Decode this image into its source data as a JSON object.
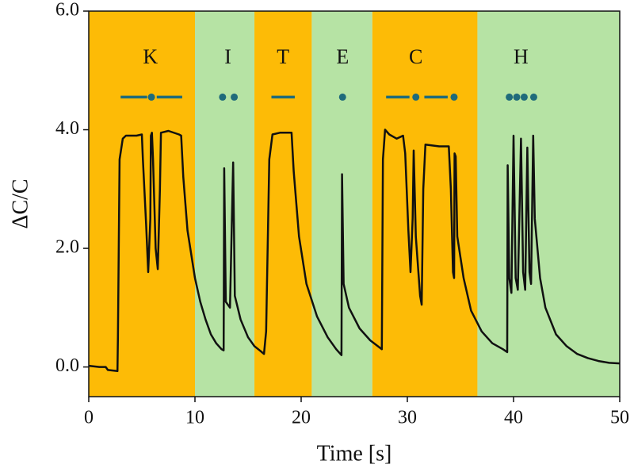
{
  "chart_data": {
    "type": "line",
    "xlabel": "Time [s]",
    "ylabel": "ΔC/C",
    "xlim": [
      0,
      50
    ],
    "ylim": [
      -0.5,
      6.0
    ],
    "xticks": [
      0,
      10,
      20,
      30,
      40,
      50
    ],
    "yticks": [
      {
        "value": 0,
        "label": "0.0"
      },
      {
        "value": 2,
        "label": "2.0"
      },
      {
        "value": 4,
        "label": "4.0"
      },
      {
        "value": 6,
        "label": "6.0"
      }
    ],
    "regions": [
      {
        "xlim": [
          0,
          10
        ],
        "color": "#fdbb06"
      },
      {
        "xlim": [
          10,
          15.6
        ],
        "color": "#b6e3a4"
      },
      {
        "xlim": [
          15.6,
          21
        ],
        "color": "#fdbb06"
      },
      {
        "xlim": [
          21,
          26.7
        ],
        "color": "#b6e3a4"
      },
      {
        "xlim": [
          26.7,
          36.6
        ],
        "color": "#fdbb06"
      },
      {
        "xlim": [
          36.6,
          50
        ],
        "color": "#b6e3a4"
      }
    ],
    "annotations": [
      {
        "text": "K",
        "x": 5.8,
        "y": 5.2
      },
      {
        "text": "I",
        "x": 13.1,
        "y": 5.2
      },
      {
        "text": "T",
        "x": 18.3,
        "y": 5.2
      },
      {
        "text": "E",
        "x": 23.9,
        "y": 5.2
      },
      {
        "text": "C",
        "x": 30.8,
        "y": 5.2
      },
      {
        "text": "H",
        "x": 40.7,
        "y": 5.2
      }
    ],
    "symbol_color": "#1f6b7b",
    "symbols": [
      {
        "kind": "dash",
        "x": [
          3.0,
          5.5
        ],
        "y": 4.55
      },
      {
        "kind": "dot",
        "x": 5.9,
        "y": 4.55
      },
      {
        "kind": "dash",
        "x": [
          6.4,
          8.8
        ],
        "y": 4.55
      },
      {
        "kind": "dot",
        "x": 12.6,
        "y": 4.55
      },
      {
        "kind": "dot",
        "x": 13.7,
        "y": 4.55
      },
      {
        "kind": "dash",
        "x": [
          17.2,
          19.4
        ],
        "y": 4.55
      },
      {
        "kind": "dot",
        "x": 23.9,
        "y": 4.55
      },
      {
        "kind": "dash",
        "x": [
          28.0,
          30.2
        ],
        "y": 4.55
      },
      {
        "kind": "dot",
        "x": 30.8,
        "y": 4.55
      },
      {
        "kind": "dash",
        "x": [
          31.6,
          33.8
        ],
        "y": 4.55
      },
      {
        "kind": "dot",
        "x": 34.4,
        "y": 4.55
      },
      {
        "kind": "dot",
        "x": 39.6,
        "y": 4.55
      },
      {
        "kind": "dot",
        "x": 40.3,
        "y": 4.55
      },
      {
        "kind": "dot",
        "x": 41.0,
        "y": 4.55
      },
      {
        "kind": "dot",
        "x": 41.9,
        "y": 4.55
      }
    ],
    "series": [
      {
        "color": "#111111",
        "x": [
          0,
          1,
          1.6,
          1.8,
          2.7,
          2.75,
          2.9,
          3.2,
          3.5,
          4.5,
          5.0,
          5.1,
          5.4,
          5.6,
          5.8,
          5.85,
          5.95,
          6.05,
          6.3,
          6.5,
          6.7,
          6.8,
          7.5,
          8.5,
          8.7,
          8.9,
          9.3,
          10,
          10.5,
          11,
          11.5,
          12,
          12.5,
          12.7,
          12.75,
          12.9,
          13.3,
          13.6,
          13.75,
          14.3,
          15,
          15.6,
          16.1,
          16.5,
          16.7,
          17,
          17.3,
          18,
          19.1,
          19.3,
          19.8,
          20.5,
          21.5,
          22.5,
          23.3,
          23.8,
          23.85,
          24,
          24.5,
          25.5,
          26.5,
          27.6,
          27.7,
          27.9,
          28.3,
          29,
          29.6,
          29.8,
          30.1,
          30.3,
          30.5,
          30.6,
          30.8,
          31.2,
          31.35,
          31.5,
          31.7,
          33,
          33.9,
          34.1,
          34.3,
          34.4,
          34.45,
          34.55,
          34.7,
          35.3,
          36,
          37,
          38,
          39,
          39.4,
          39.45,
          39.6,
          39.8,
          40.0,
          40.2,
          40.4,
          40.7,
          40.9,
          41.1,
          41.3,
          41.5,
          41.65,
          41.85,
          42.0,
          42.5,
          43,
          44,
          45,
          46,
          47,
          48,
          49,
          50
        ],
        "values": [
          0.02,
          0.0,
          0.0,
          -0.05,
          -0.07,
          0.5,
          3.5,
          3.85,
          3.9,
          3.9,
          3.92,
          3.5,
          2.4,
          1.6,
          2.5,
          3.9,
          3.95,
          3.5,
          2.0,
          1.65,
          3.0,
          3.95,
          3.98,
          3.92,
          3.9,
          3.2,
          2.3,
          1.5,
          1.1,
          0.8,
          0.55,
          0.4,
          0.3,
          0.28,
          3.35,
          1.1,
          1.0,
          3.45,
          1.2,
          0.8,
          0.5,
          0.35,
          0.28,
          0.22,
          0.6,
          3.5,
          3.92,
          3.95,
          3.95,
          3.3,
          2.2,
          1.4,
          0.85,
          0.5,
          0.3,
          0.2,
          3.25,
          1.4,
          1.0,
          0.65,
          0.45,
          0.3,
          3.5,
          4.0,
          3.92,
          3.85,
          3.9,
          3.6,
          2.3,
          1.6,
          2.5,
          3.65,
          2.2,
          1.2,
          1.05,
          3.0,
          3.75,
          3.72,
          3.72,
          3.0,
          1.6,
          1.5,
          3.6,
          3.55,
          2.2,
          1.5,
          0.95,
          0.6,
          0.4,
          0.3,
          0.25,
          3.4,
          1.5,
          1.25,
          3.9,
          1.5,
          1.3,
          3.85,
          1.6,
          1.3,
          3.7,
          1.6,
          1.4,
          3.9,
          2.5,
          1.5,
          1.0,
          0.55,
          0.35,
          0.22,
          0.15,
          0.1,
          0.07,
          0.06
        ]
      }
    ]
  }
}
